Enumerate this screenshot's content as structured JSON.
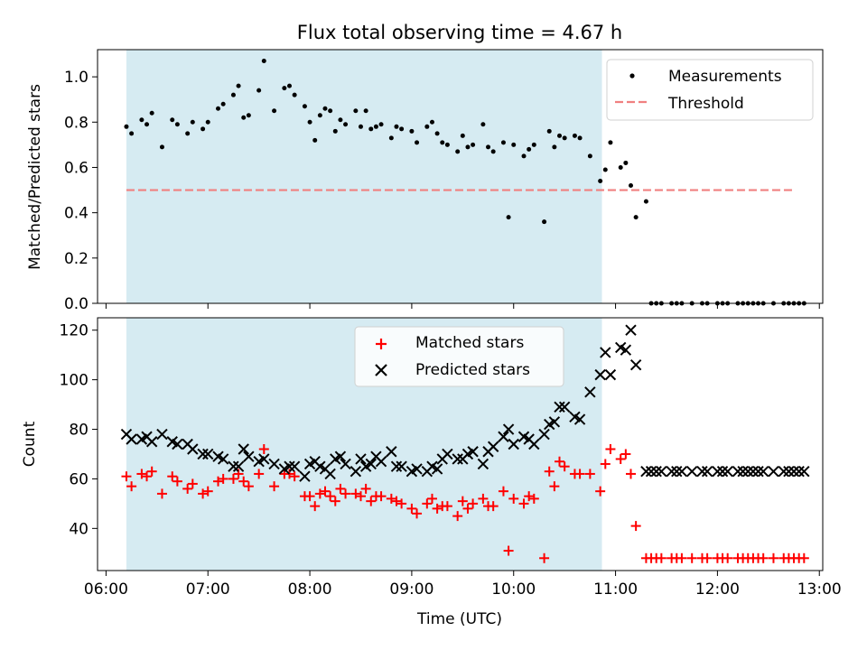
{
  "figure": {
    "title": "Flux total observing time = 4.67 h"
  },
  "colors": {
    "highlight": "#add8e6",
    "measurements": "#000000",
    "threshold": "#f08080",
    "matched": "#ff0000",
    "predicted": "#000000"
  },
  "chart_data": [
    {
      "type": "scatter",
      "panel": "top",
      "title": "Flux total observing time = 4.67 h",
      "xlabel": "",
      "ylabel": "Matched/Predicted stars",
      "xlim": [
        "05:55",
        "13:02"
      ],
      "ylim": [
        0,
        1.12
      ],
      "yticks": [
        "0.0",
        "0.2",
        "0.4",
        "0.6",
        "0.8",
        "1.0"
      ],
      "grid": false,
      "legend": {
        "position": "top-right",
        "entries": [
          "Measurements",
          "Threshold"
        ]
      },
      "highlight_span": {
        "x0": "06:12",
        "x1": "10:52"
      },
      "series": [
        {
          "name": "Measurements",
          "marker": "dot",
          "x": [
            "06:12",
            "06:15",
            "06:21",
            "06:24",
            "06:27",
            "06:33",
            "06:39",
            "06:42",
            "06:48",
            "06:51",
            "06:57",
            "07:00",
            "07:06",
            "07:09",
            "07:15",
            "07:18",
            "07:21",
            "07:24",
            "07:30",
            "07:33",
            "07:39",
            "07:45",
            "07:48",
            "07:51",
            "07:57",
            "08:00",
            "08:03",
            "08:06",
            "08:09",
            "08:12",
            "08:15",
            "08:18",
            "08:21",
            "08:27",
            "08:30",
            "08:33",
            "08:36",
            "08:39",
            "08:42",
            "08:48",
            "08:51",
            "08:54",
            "09:00",
            "09:03",
            "09:09",
            "09:12",
            "09:15",
            "09:18",
            "09:21",
            "09:27",
            "09:30",
            "09:33",
            "09:36",
            "09:42",
            "09:45",
            "09:48",
            "09:54",
            "09:57",
            "10:00",
            "10:06",
            "10:09",
            "10:12",
            "10:18",
            "10:21",
            "10:24",
            "10:27",
            "10:30",
            "10:36",
            "10:39",
            "10:45",
            "10:51",
            "10:54",
            "10:57",
            "11:03",
            "11:06",
            "11:09",
            "11:12",
            "11:18",
            "11:21",
            "11:24",
            "11:27",
            "11:33",
            "11:36",
            "11:39",
            "11:45",
            "11:51",
            "11:54",
            "12:00",
            "12:03",
            "12:06",
            "12:12",
            "12:15",
            "12:18",
            "12:21",
            "12:24",
            "12:27",
            "12:33",
            "12:39",
            "12:42",
            "12:45",
            "12:48",
            "12:51"
          ],
          "y": [
            0.78,
            0.75,
            0.81,
            0.79,
            0.84,
            0.69,
            0.81,
            0.79,
            0.75,
            0.8,
            0.77,
            0.8,
            0.86,
            0.88,
            0.92,
            0.96,
            0.82,
            0.83,
            0.94,
            1.07,
            0.85,
            0.95,
            0.96,
            0.92,
            0.87,
            0.8,
            0.72,
            0.83,
            0.86,
            0.85,
            0.76,
            0.81,
            0.79,
            0.85,
            0.78,
            0.85,
            0.77,
            0.78,
            0.79,
            0.73,
            0.78,
            0.77,
            0.76,
            0.71,
            0.78,
            0.8,
            0.75,
            0.71,
            0.7,
            0.67,
            0.74,
            0.69,
            0.7,
            0.79,
            0.69,
            0.67,
            0.71,
            0.38,
            0.7,
            0.65,
            0.68,
            0.7,
            0.36,
            0.76,
            0.69,
            0.74,
            0.73,
            0.74,
            0.73,
            0.65,
            0.54,
            0.59,
            0.71,
            0.6,
            0.62,
            0.52,
            0.38,
            0.45,
            0.0,
            0.0,
            0.0,
            0.0,
            0.0,
            0.0,
            0.0,
            0.0,
            0.0,
            0.0,
            0.0,
            0.0,
            0.0,
            0.0,
            0.0,
            0.0,
            0.0,
            0.0,
            0.0,
            0.0,
            0.0,
            0.0,
            0.0,
            0.0
          ]
        },
        {
          "name": "Threshold",
          "style": "dashed",
          "x": [
            "06:12",
            "12:45"
          ],
          "y": [
            0.5,
            0.5
          ]
        }
      ]
    },
    {
      "type": "scatter",
      "panel": "bottom",
      "xlabel": "Time (UTC)",
      "ylabel": "Count",
      "xlim": [
        "05:55",
        "13:02"
      ],
      "ylim": [
        23,
        125
      ],
      "xticks": [
        "06:00",
        "07:00",
        "08:00",
        "09:00",
        "10:00",
        "11:00",
        "12:00",
        "13:00"
      ],
      "yticks": [
        "40",
        "60",
        "80",
        "100",
        "120"
      ],
      "grid": false,
      "legend": {
        "position": "top-center",
        "entries": [
          "Matched stars",
          "Predicted stars"
        ]
      },
      "highlight_span": {
        "x0": "06:12",
        "x1": "10:52"
      },
      "series": [
        {
          "name": "Matched stars",
          "marker": "plus",
          "x": [
            "06:12",
            "06:15",
            "06:21",
            "06:24",
            "06:27",
            "06:33",
            "06:39",
            "06:42",
            "06:48",
            "06:51",
            "06:57",
            "07:00",
            "07:06",
            "07:09",
            "07:15",
            "07:18",
            "07:21",
            "07:24",
            "07:30",
            "07:33",
            "07:39",
            "07:45",
            "07:48",
            "07:51",
            "07:57",
            "08:00",
            "08:03",
            "08:06",
            "08:09",
            "08:12",
            "08:15",
            "08:18",
            "08:21",
            "08:27",
            "08:30",
            "08:33",
            "08:36",
            "08:39",
            "08:42",
            "08:48",
            "08:51",
            "08:54",
            "09:00",
            "09:03",
            "09:09",
            "09:12",
            "09:15",
            "09:18",
            "09:21",
            "09:27",
            "09:30",
            "09:33",
            "09:36",
            "09:42",
            "09:45",
            "09:48",
            "09:54",
            "09:57",
            "10:00",
            "10:06",
            "10:09",
            "10:12",
            "10:18",
            "10:21",
            "10:24",
            "10:27",
            "10:30",
            "10:36",
            "10:39",
            "10:45",
            "10:51",
            "10:54",
            "10:57",
            "11:03",
            "11:06",
            "11:09",
            "11:12",
            "11:18",
            "11:21",
            "11:24",
            "11:27",
            "11:33",
            "11:36",
            "11:39",
            "11:45",
            "11:51",
            "11:54",
            "12:00",
            "12:03",
            "12:06",
            "12:12",
            "12:15",
            "12:18",
            "12:21",
            "12:24",
            "12:27",
            "12:33",
            "12:39",
            "12:42",
            "12:45",
            "12:48",
            "12:51"
          ],
          "y": [
            61,
            57,
            62,
            61,
            63,
            54,
            61,
            59,
            56,
            58,
            54,
            55,
            59,
            60,
            60,
            62,
            59,
            57,
            62,
            72,
            57,
            62,
            62,
            61,
            53,
            53,
            49,
            54,
            55,
            53,
            51,
            56,
            54,
            54,
            53,
            56,
            51,
            53,
            53,
            52,
            51,
            50,
            48,
            46,
            50,
            52,
            48,
            49,
            49,
            45,
            51,
            48,
            50,
            52,
            49,
            49,
            55,
            31,
            52,
            50,
            53,
            52,
            28,
            63,
            57,
            67,
            65,
            62,
            62,
            62,
            55,
            66,
            72,
            68,
            70,
            62,
            41,
            28,
            28,
            28,
            28,
            28,
            28,
            28,
            28,
            28,
            28,
            28,
            28,
            28,
            28,
            28,
            28,
            28,
            28,
            28,
            28,
            28,
            28,
            28,
            28,
            28
          ]
        },
        {
          "name": "Predicted stars",
          "marker": "cross",
          "x": [
            "06:12",
            "06:15",
            "06:21",
            "06:24",
            "06:27",
            "06:33",
            "06:39",
            "06:42",
            "06:48",
            "06:51",
            "06:57",
            "07:00",
            "07:06",
            "07:09",
            "07:15",
            "07:18",
            "07:21",
            "07:24",
            "07:30",
            "07:33",
            "07:39",
            "07:45",
            "07:48",
            "07:51",
            "07:57",
            "08:00",
            "08:03",
            "08:06",
            "08:09",
            "08:12",
            "08:15",
            "08:18",
            "08:21",
            "08:27",
            "08:30",
            "08:33",
            "08:36",
            "08:39",
            "08:42",
            "08:48",
            "08:51",
            "08:54",
            "09:00",
            "09:03",
            "09:09",
            "09:12",
            "09:15",
            "09:18",
            "09:21",
            "09:27",
            "09:30",
            "09:33",
            "09:36",
            "09:42",
            "09:45",
            "09:48",
            "09:54",
            "09:57",
            "10:00",
            "10:06",
            "10:09",
            "10:12",
            "10:18",
            "10:21",
            "10:24",
            "10:27",
            "10:30",
            "10:36",
            "10:39",
            "10:45",
            "10:51",
            "10:54",
            "10:57",
            "11:03",
            "11:06",
            "11:09",
            "11:12",
            "11:18",
            "11:21",
            "11:24",
            "11:27",
            "11:33",
            "11:36",
            "11:39",
            "11:45",
            "11:51",
            "11:54",
            "12:00",
            "12:03",
            "12:06",
            "12:12",
            "12:15",
            "12:18",
            "12:21",
            "12:24",
            "12:27",
            "12:33",
            "12:39",
            "12:42",
            "12:45",
            "12:48",
            "12:51"
          ],
          "y": [
            78,
            76,
            76,
            77,
            75,
            78,
            75,
            74,
            74,
            72,
            70,
            70,
            69,
            68,
            65,
            65,
            72,
            69,
            67,
            68,
            66,
            64,
            65,
            65,
            61,
            66,
            67,
            65,
            64,
            62,
            68,
            69,
            66,
            63,
            68,
            65,
            66,
            69,
            67,
            71,
            65,
            65,
            63,
            64,
            63,
            65,
            64,
            68,
            70,
            68,
            68,
            70,
            71,
            66,
            71,
            73,
            77,
            80,
            74,
            77,
            76,
            74,
            78,
            82,
            83,
            89,
            89,
            85,
            84,
            95,
            102,
            111,
            102,
            113,
            112,
            120,
            106,
            63,
            63,
            63,
            63,
            63,
            63,
            63,
            63,
            63,
            63,
            63,
            63,
            63,
            63,
            63,
            63,
            63,
            63,
            63,
            63,
            63,
            63,
            63,
            63,
            63
          ]
        }
      ]
    }
  ]
}
